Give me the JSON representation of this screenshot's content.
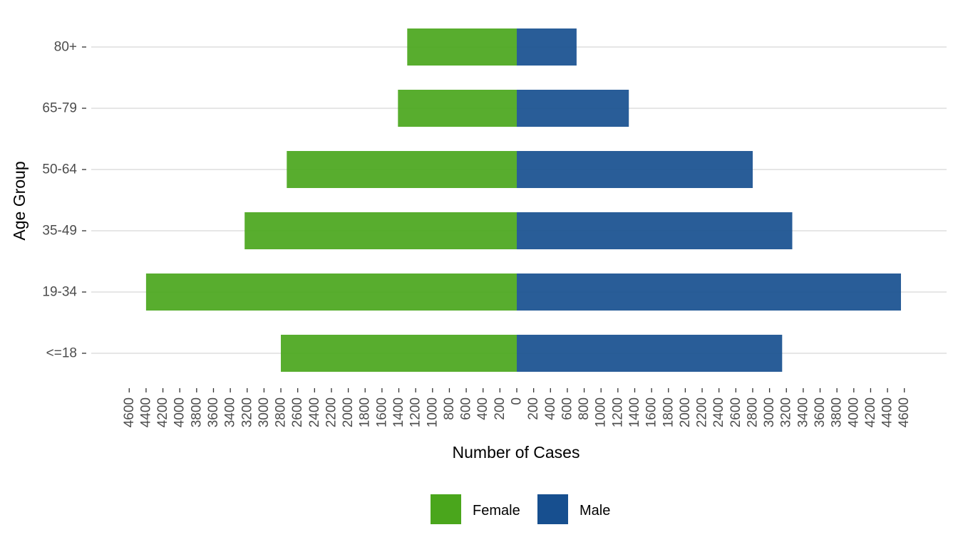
{
  "chart_data": {
    "type": "bar",
    "orientation": "horizontal",
    "layout": "population-pyramid",
    "categories": [
      "<=18",
      "19-34",
      "35-49",
      "50-64",
      "65-79",
      "80+"
    ],
    "series": [
      {
        "name": "Female",
        "values": [
          2800,
          4400,
          3230,
          2730,
          1410,
          1300
        ],
        "color": "#4aa61c",
        "side": "left"
      },
      {
        "name": "Male",
        "values": [
          3150,
          4560,
          3270,
          2800,
          1330,
          710
        ],
        "color": "#174f8f",
        "side": "right"
      }
    ],
    "xlabel": "Number of Cases",
    "ylabel": "Age Group",
    "xlim": [
      -4600,
      4600
    ],
    "xticks": [
      -4600,
      -4400,
      -4200,
      -4000,
      -3800,
      -3600,
      -3400,
      -3200,
      -3000,
      -2800,
      -2600,
      -2400,
      -2200,
      -2000,
      -1800,
      -1600,
      -1400,
      -1200,
      -1000,
      -800,
      -600,
      -400,
      -200,
      0,
      200,
      400,
      600,
      800,
      1000,
      1200,
      1400,
      1600,
      1800,
      2000,
      2200,
      2400,
      2600,
      2800,
      3000,
      3200,
      3400,
      3600,
      3800,
      4000,
      4200,
      4400,
      4600
    ],
    "xtick_label": "absolute value",
    "grid": "horizontal major",
    "legend": {
      "position": "bottom",
      "entries": [
        "Female",
        "Male"
      ]
    },
    "bar_opacity": 0.92
  }
}
